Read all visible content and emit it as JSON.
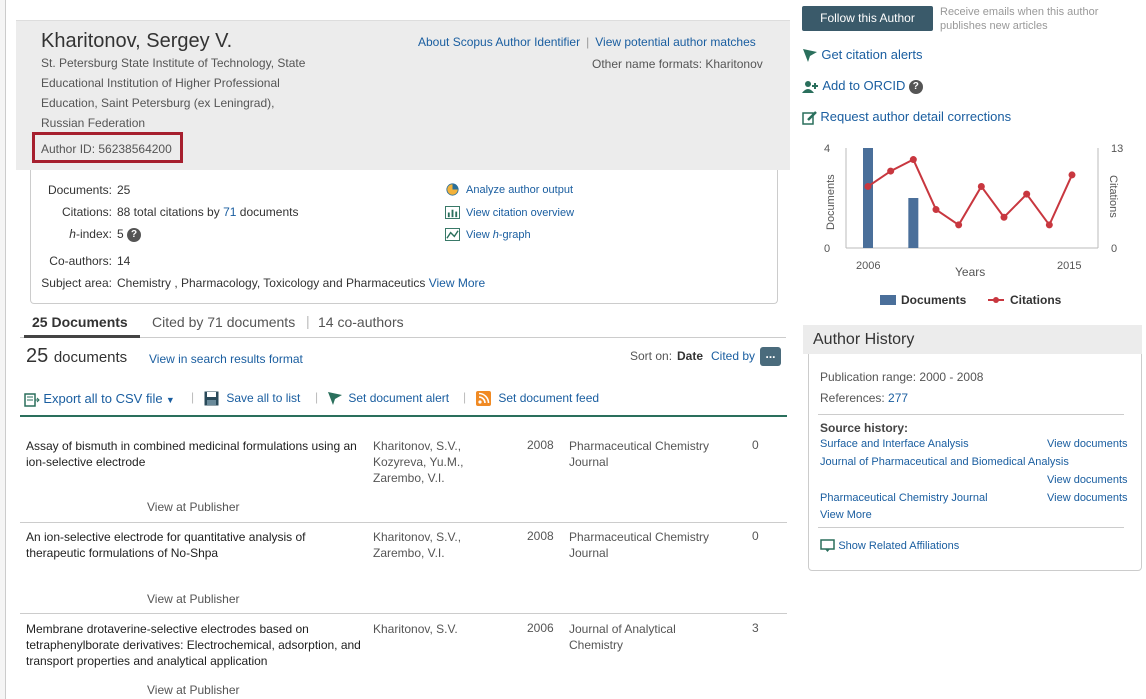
{
  "author": {
    "name": "Kharitonov, Sergey V.",
    "affiliation_lines": [
      "St. Petersburg State Institute of Technology, State",
      "Educational Institution of Higher Professional",
      "Education, Saint Petersburg (ex Leningrad),",
      "Russian Federation"
    ],
    "author_id": "Author ID: 56238564200",
    "about_link": "About Scopus Author Identifier",
    "matches_link": "View potential author matches",
    "other_names": "Other name formats: Kharitonov"
  },
  "metrics": {
    "documents_label": "Documents:",
    "documents_value": "25",
    "citations_label": "Citations:",
    "citations_text": "88 total citations by",
    "citations_link": "71",
    "citations_suffix": "documents",
    "hindex_label_italic": "h",
    "hindex_label_rest": "-index:",
    "hindex_value": "5",
    "coauthors_label": "Co-authors:",
    "coauthors_value": "14",
    "subject_label": "Subject area:",
    "subject_value": "Chemistry ,  Pharmacology, Toxicology and Pharmaceutics",
    "subject_more": "View More",
    "tools": {
      "analyze": "Analyze author output",
      "citation_overview": "View citation overview",
      "hgraph_pre": "View ",
      "hgraph_italic": "h",
      "hgraph_post": "-graph"
    }
  },
  "tabs": {
    "documents": "25 Documents",
    "cited_by": "Cited by 71 documents",
    "coauthors": "14 co-authors"
  },
  "results": {
    "count": "25",
    "count_label": "documents",
    "search_format": "View in search results format",
    "sort_label": "Sort on:",
    "sort_date": "Date",
    "sort_cited": "Cited by",
    "more": "..."
  },
  "actions": {
    "export": "Export all to CSV file",
    "save": "Save all to list",
    "alert": "Set document alert",
    "feed": "Set document feed"
  },
  "documents": [
    {
      "title": "Assay of bismuth in combined medicinal formulations using an ion-selective electrode",
      "authors": [
        "Kharitonov, S.V.,",
        "Kozyreva, Yu.M.,",
        "Zarembo, V.I."
      ],
      "year": "2008",
      "source": "Pharmaceutical Chemistry Journal",
      "cited": "0",
      "view": "View at Publisher"
    },
    {
      "title": "An ion-selective electrode for quantitative analysis of therapeutic formulations of No-Shpa",
      "authors": [
        "Kharitonov, S.V.,",
        "Zarembo, V.I."
      ],
      "year": "2008",
      "source": "Pharmaceutical Chemistry Journal",
      "cited": "0",
      "view": "View at Publisher"
    },
    {
      "title": "Membrane drotaverine-selective electrodes based on tetraphenylborate derivatives: Electrochemical, adsorption, and transport properties and analytical application",
      "authors": [
        "Kharitonov, S.V."
      ],
      "year": "2006",
      "source": "Journal of Analytical Chemistry",
      "cited": "3",
      "view": "View at Publisher"
    }
  ],
  "right": {
    "follow": "Follow this Author",
    "receive": "Receive emails when this author publishes new articles",
    "citation_alerts": "Get citation alerts",
    "orcid": "Add to ORCID",
    "corrections": "Request author detail corrections"
  },
  "history": {
    "title": "Author History",
    "pub_range": "Publication range: 2000 - 2008",
    "references_label": "References:",
    "references_value": "277",
    "source_history": "Source history:",
    "sources": [
      {
        "name": "Surface and Interface Analysis",
        "action": "View documents"
      },
      {
        "name": "Journal of Pharmaceutical and Biomedical Analysis",
        "action": "View documents"
      },
      {
        "name": "Pharmaceutical Chemistry Journal",
        "action": "View documents"
      }
    ],
    "view_more": "View More",
    "related": "Show Related Affiliations"
  },
  "chart_data": {
    "type": "bar",
    "x_start_label": "2006",
    "x_end_label": "2015",
    "xlabel": "Years",
    "ylabel_left": "Documents",
    "ylabel_right": "Citations",
    "left_ticks": [
      "4",
      "0"
    ],
    "right_ticks": [
      "13",
      "0"
    ],
    "left_max": 4,
    "right_max": 13,
    "categories": [
      2006,
      2007,
      2008,
      2009,
      2010,
      2011,
      2012,
      2013,
      2014,
      2015
    ],
    "series": [
      {
        "name": "Documents",
        "type": "bar",
        "color": "#4a6f9a",
        "values": [
          4,
          0,
          2,
          0,
          0,
          0,
          0,
          0,
          0,
          0
        ]
      },
      {
        "name": "Citations",
        "type": "line",
        "color": "#c8373f",
        "values": [
          8,
          10,
          11.5,
          5,
          3,
          8,
          4,
          7,
          3,
          9.5
        ]
      }
    ]
  }
}
